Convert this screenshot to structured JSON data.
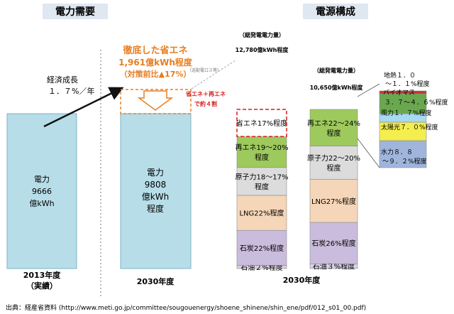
{
  "headers": {
    "demand": "電力需要",
    "supply": "電源構成"
  },
  "demand": {
    "bar2013": {
      "line1": "電力",
      "line2": "9666",
      "line3": "億kWh",
      "label_year": "2013年度",
      "label_note": "（実績）"
    },
    "growth": {
      "line1": "経済成長",
      "line2": "１．７%／年"
    },
    "bar2030": {
      "line1": "電力",
      "line2": "9808",
      "line3": "億kWh",
      "line4": "程度",
      "label_year": "2030年度"
    },
    "saving": {
      "line1": "徹底した省エネ",
      "line2": "1,961億kWh程度",
      "line3": "（対策前比▲17%）"
    },
    "small_note": "（送配電ロス等）"
  },
  "supply": {
    "year_label": "2030年度",
    "left_total_caption": "（総発電電力量）",
    "left_total_value": "12,780億kWh程度",
    "right_total_caption": "（総発電電力量）",
    "right_total_value": "10,650億kWh程度",
    "annotation": {
      "line1": "省エネ＋再エネ",
      "line2": "で約４割"
    }
  },
  "chart_data": {
    "type": "bar",
    "title": "電源構成",
    "stacks": [
      {
        "name": "総発電電力量 12,780億kWh程度",
        "segments": [
          {
            "label": "石油２%程度",
            "share_pct": 2,
            "color": "#d8d0e6"
          },
          {
            "label": "石炭22%程度",
            "share_pct": 22,
            "color": "#c9bcdc"
          },
          {
            "label": "LNG22%程度",
            "share_pct": 22,
            "color": "#f6d6b8"
          },
          {
            "label": "原子力18～17%",
            "line2": "程度",
            "share_pct": 17.5,
            "color": "#dcdcdc"
          },
          {
            "label": "再エネ19～20%",
            "line2": "程度",
            "share_pct": 19.5,
            "color": "#9dc95d"
          },
          {
            "label": "省エネ17%程度",
            "share_pct": 17,
            "color": "#ffffff",
            "dashed": true
          }
        ]
      },
      {
        "name": "総発電電力量 10,650億kWh程度",
        "segments": [
          {
            "label": "石油３%程度",
            "share_pct": 3,
            "color": "#d8d0e6"
          },
          {
            "label": "石炭26%程度",
            "share_pct": 26,
            "color": "#c9bcdc"
          },
          {
            "label": "LNG27%程度",
            "share_pct": 27,
            "color": "#f6d6b8"
          },
          {
            "label": "原子力22～20%",
            "line2": "程度",
            "share_pct": 21,
            "color": "#dcdcdc"
          },
          {
            "label": "再エネ22～24%",
            "line2": "程度",
            "share_pct": 23,
            "color": "#9dc95d"
          }
        ]
      }
    ],
    "renewable_breakdown": [
      {
        "label": "水力８．８",
        "line2": "～９．２%程度",
        "value_pct": 9.0,
        "color": "#9fb5dc"
      },
      {
        "label": "太陽光７．０%程度",
        "value_pct": 7.0,
        "color": "#f4ee4e"
      },
      {
        "label": "風力１．７%程度",
        "value_pct": 1.7,
        "color": "#a7d9ef"
      },
      {
        "label": "バイオマス",
        "line2": "３．７～４．６%程度",
        "value_pct": 4.15,
        "color": "#6aa84f"
      },
      {
        "label": "地熱１．０",
        "line2": "～１．１%程度",
        "value_pct": 1.05,
        "color": "#c0392b"
      }
    ]
  },
  "source": "出典：経産省資料 (http://www.meti.go.jp/committee/sougouenergy/shoene_shinene/shin_ene/pdf/012_s01_00.pdf)"
}
